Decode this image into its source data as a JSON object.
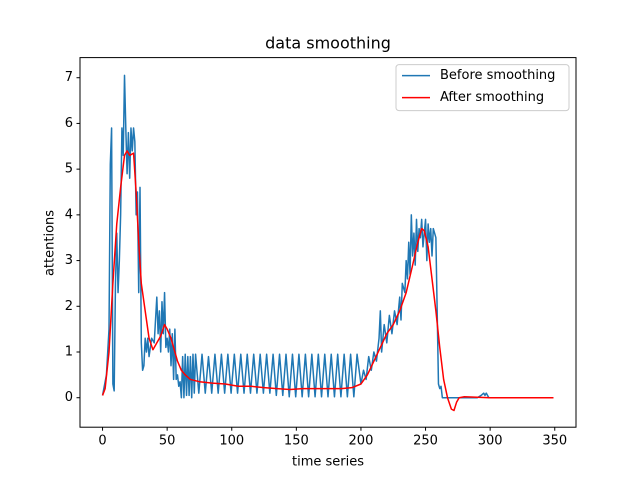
{
  "chart_data": {
    "type": "line",
    "title": "data smoothing",
    "xlabel": "time series",
    "ylabel": "attentions",
    "xlim": [
      -17.45,
      366.45
    ],
    "xticks": [
      0,
      50,
      100,
      150,
      200,
      250,
      300,
      350
    ],
    "ylim": [
      -0.645,
      7.44
    ],
    "yticks": [
      0,
      1,
      2,
      3,
      4,
      5,
      6,
      7
    ],
    "legend": "upper right",
    "grid": false,
    "series": [
      {
        "name": "Before smoothing",
        "color": "#1f77b4",
        "x": [
          0,
          3,
          5,
          6,
          7,
          8,
          9,
          10,
          11,
          12,
          13,
          14,
          15,
          16,
          17,
          18,
          19,
          20,
          21,
          22,
          23,
          24,
          25,
          26,
          27,
          28,
          29,
          30,
          31,
          32,
          33,
          34,
          35,
          36,
          38,
          40,
          42,
          43,
          44,
          45,
          46,
          47,
          48,
          49,
          50,
          51,
          52,
          53,
          54,
          55,
          56,
          57,
          58,
          59,
          60,
          61,
          62,
          63,
          64,
          65,
          66,
          67,
          68,
          69,
          70,
          71,
          72,
          74.5,
          77,
          79.5,
          82,
          84.5,
          87,
          89.5,
          92,
          94.5,
          97,
          99.5,
          102,
          104.5,
          107,
          109.5,
          112,
          114.5,
          117,
          119.5,
          122,
          124.5,
          127,
          129.5,
          132,
          134.5,
          137,
          139.5,
          142,
          144.5,
          147,
          149.5,
          152,
          154.5,
          157,
          159.5,
          162,
          164.5,
          167,
          169.5,
          172,
          174.5,
          177,
          179.5,
          182,
          184.5,
          187,
          189.5,
          192,
          194.5,
          197,
          200,
          202,
          204,
          206,
          208,
          210,
          212,
          214,
          215,
          216,
          218,
          220,
          222,
          224,
          226,
          228,
          230,
          231,
          232,
          234,
          235,
          236,
          237,
          238,
          239,
          240,
          241,
          242,
          243,
          244,
          245,
          246,
          247,
          248,
          249,
          250,
          251,
          252,
          253,
          254,
          255,
          256,
          258,
          259,
          260,
          261,
          262,
          263,
          265,
          290,
          293,
          295,
          296,
          297,
          299,
          349
        ],
        "values": [
          0.05,
          0.5,
          1.5,
          5.1,
          5.9,
          0.3,
          0.15,
          2.5,
          3.6,
          2.3,
          3.0,
          4.0,
          5.9,
          5.3,
          7.05,
          5.9,
          4.9,
          5.8,
          4.8,
          5.9,
          5.4,
          5.9,
          5.6,
          4.0,
          4.5,
          2.3,
          4.6,
          1.2,
          0.6,
          0.7,
          1.3,
          1.0,
          1.3,
          0.9,
          1.3,
          1.2,
          2.2,
          1.4,
          1.9,
          1.0,
          2.1,
          1.4,
          2.3,
          1.1,
          1.3,
          1.0,
          1.5,
          0.7,
          1.4,
          0.4,
          1.5,
          0.4,
          0.5,
          0.25,
          0.35,
          0.0,
          0.9,
          0.0,
          0.95,
          0.05,
          0.9,
          0.05,
          0.9,
          0.0,
          0.95,
          0.1,
          0.95,
          0.1,
          0.95,
          0.1,
          0.9,
          0.1,
          0.95,
          0.1,
          0.95,
          0.1,
          0.95,
          0.1,
          0.95,
          0.1,
          0.95,
          0.1,
          0.95,
          0.1,
          0.95,
          0.1,
          0.95,
          0.1,
          0.95,
          0.1,
          0.95,
          0.05,
          0.95,
          0.05,
          0.95,
          0.02,
          0.95,
          0.02,
          0.95,
          0.02,
          0.95,
          0.02,
          0.95,
          0.02,
          0.95,
          0.02,
          0.95,
          0.02,
          0.95,
          0.02,
          0.95,
          0.02,
          0.95,
          0.02,
          0.95,
          0.02,
          0.95,
          0.3,
          0.6,
          0.4,
          0.9,
          0.6,
          1.0,
          0.8,
          1.3,
          1.9,
          1.0,
          1.6,
          1.2,
          1.8,
          1.4,
          1.9,
          1.6,
          2.2,
          1.7,
          2.5,
          2.3,
          3.0,
          2.6,
          3.4,
          2.7,
          4.0,
          3.1,
          3.6,
          2.9,
          3.9,
          3.2,
          3.7,
          3.5,
          3.9,
          3.3,
          3.6,
          3.9,
          3.0,
          3.8,
          3.4,
          3.7,
          3.1,
          3.7,
          3.5,
          1.9,
          0.3,
          0.2,
          0.25,
          0.0,
          0.0,
          0.0,
          0.05,
          0.1,
          0.05,
          0.1,
          0.0,
          0.0
        ]
      },
      {
        "name": "After smoothing",
        "color": "#ff0000",
        "x": [
          0,
          2,
          5,
          8,
          11,
          14,
          17,
          19,
          21,
          24,
          26,
          28,
          30,
          33,
          36,
          39,
          42,
          45,
          48,
          50,
          53,
          56,
          58,
          61,
          64,
          68,
          75,
          85,
          95,
          105,
          115,
          125,
          135,
          145,
          155,
          165,
          175,
          185,
          193,
          200,
          205,
          210,
          215,
          220,
          225,
          230,
          235,
          240,
          244,
          247,
          249,
          252,
          255,
          258,
          261,
          264,
          267,
          270,
          272,
          274,
          276,
          280,
          300,
          349
        ],
        "values": [
          0.05,
          0.2,
          1.0,
          2.5,
          3.8,
          4.6,
          5.3,
          5.4,
          5.3,
          5.35,
          4.5,
          3.4,
          2.5,
          1.9,
          1.3,
          1.05,
          1.2,
          1.35,
          1.6,
          1.5,
          1.3,
          1.0,
          0.8,
          0.6,
          0.5,
          0.4,
          0.35,
          0.32,
          0.3,
          0.25,
          0.25,
          0.22,
          0.2,
          0.18,
          0.2,
          0.2,
          0.2,
          0.2,
          0.22,
          0.3,
          0.5,
          0.8,
          1.1,
          1.4,
          1.6,
          1.9,
          2.3,
          2.9,
          3.4,
          3.7,
          3.65,
          3.3,
          2.6,
          1.9,
          1.1,
          0.4,
          0.0,
          -0.25,
          -0.28,
          -0.1,
          0.0,
          0.02,
          0.0,
          0.0
        ]
      }
    ]
  }
}
